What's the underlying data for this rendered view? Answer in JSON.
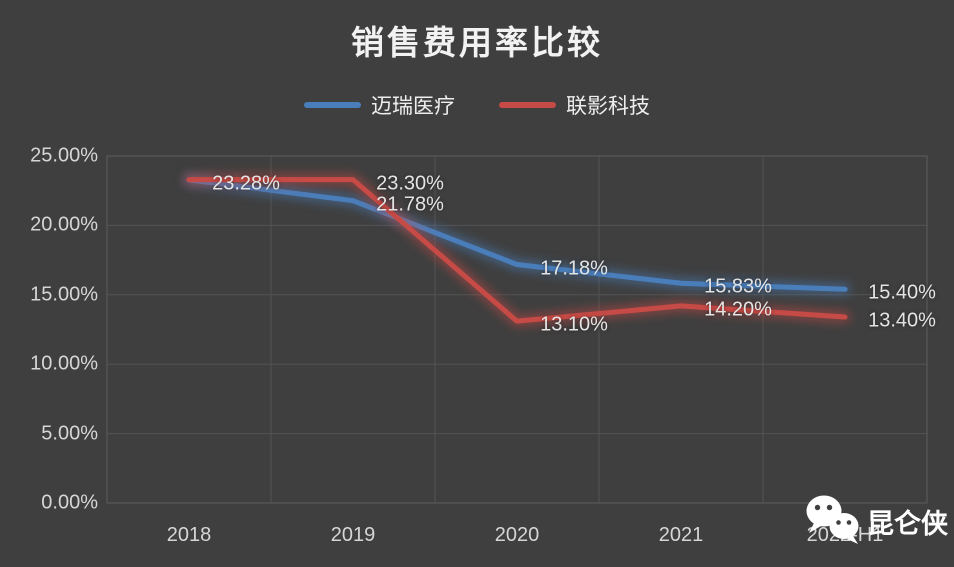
{
  "chart_data": {
    "type": "line",
    "title": "销售费用率比较",
    "categories": [
      "2018",
      "2019",
      "2020",
      "2021",
      "2022-H1"
    ],
    "y_ticks": [
      "25.00%",
      "20.00%",
      "15.00%",
      "10.00%",
      "5.00%",
      "0.00%"
    ],
    "ylim": [
      0,
      25
    ],
    "grid": true,
    "legend_position": "top",
    "colors": {
      "background": "#3f3f3f",
      "gridline": "#535353",
      "plot_border": "#5d5d5d",
      "tick_text": "#d6d6d6",
      "title_text": "#f2f2f2"
    },
    "series": [
      {
        "name": "迈瑞医疗",
        "color": "#4a7ebb",
        "values": [
          23.28,
          21.78,
          17.18,
          15.83,
          15.4
        ],
        "value_labels": [
          "23.28%",
          "21.78%",
          "17.18%",
          "15.83%",
          "15.40%"
        ]
      },
      {
        "name": "联影科技",
        "color": "#c64a45",
        "values": [
          23.3,
          23.3,
          13.1,
          14.2,
          13.4
        ],
        "value_labels": [
          "",
          "23.30%",
          "13.10%",
          "14.20%",
          "13.40%"
        ]
      }
    ]
  },
  "watermark": {
    "icon": "wechat-icon",
    "text": "昆仑侠"
  }
}
